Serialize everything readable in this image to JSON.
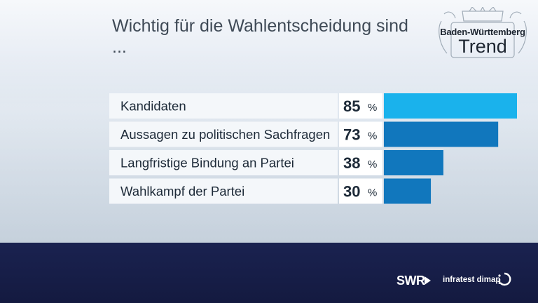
{
  "title": "Wichtig für die Wahlentscheidung sind ...",
  "logo": {
    "line1": "Baden-Württemberg",
    "line2": "Trend"
  },
  "footer": {
    "broadcaster": "SWR",
    "institute": "infratest dimap"
  },
  "colors": {
    "bar_highlight": "#1ab2ec",
    "bar_default": "#1177bd",
    "label_bg": "#f4f7fa",
    "text_dark": "#1d2a38",
    "footer_bg": "#1a2250"
  },
  "chart_data": {
    "type": "bar",
    "orientation": "horizontal",
    "title": "Wichtig für die Wahlentscheidung sind ...",
    "categories": [
      "Kandidaten",
      "Aussagen zu politischen Sachfragen",
      "Langfristige Bindung an Partei",
      "Wahlkampf der Partei"
    ],
    "values": [
      85,
      73,
      38,
      30
    ],
    "unit": "%",
    "xlim": [
      0,
      85
    ],
    "grid": false
  }
}
